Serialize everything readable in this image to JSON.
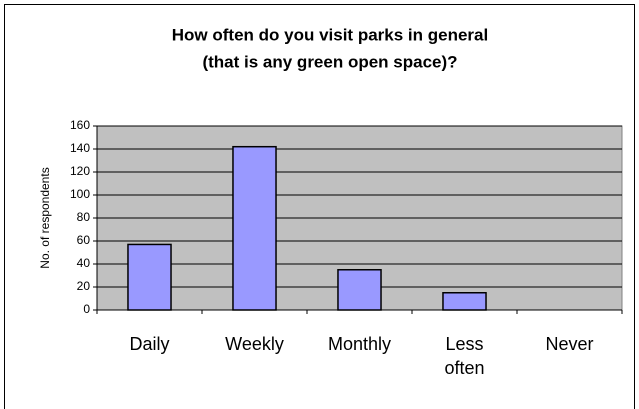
{
  "chart_data": {
    "type": "bar",
    "title": [
      "How often do you visit parks in general",
      "(that is any green open space)?"
    ],
    "y_label": "No. of respondents",
    "categories": [
      "Daily",
      "Weekly",
      "Monthly",
      "Less often",
      "Never"
    ],
    "values": [
      57,
      142,
      35,
      15,
      0
    ],
    "color": "#9999ff",
    "ylim": [
      0,
      160
    ],
    "yticks": [
      0,
      20,
      40,
      60,
      80,
      100,
      120,
      140,
      160
    ],
    "grid": true
  }
}
